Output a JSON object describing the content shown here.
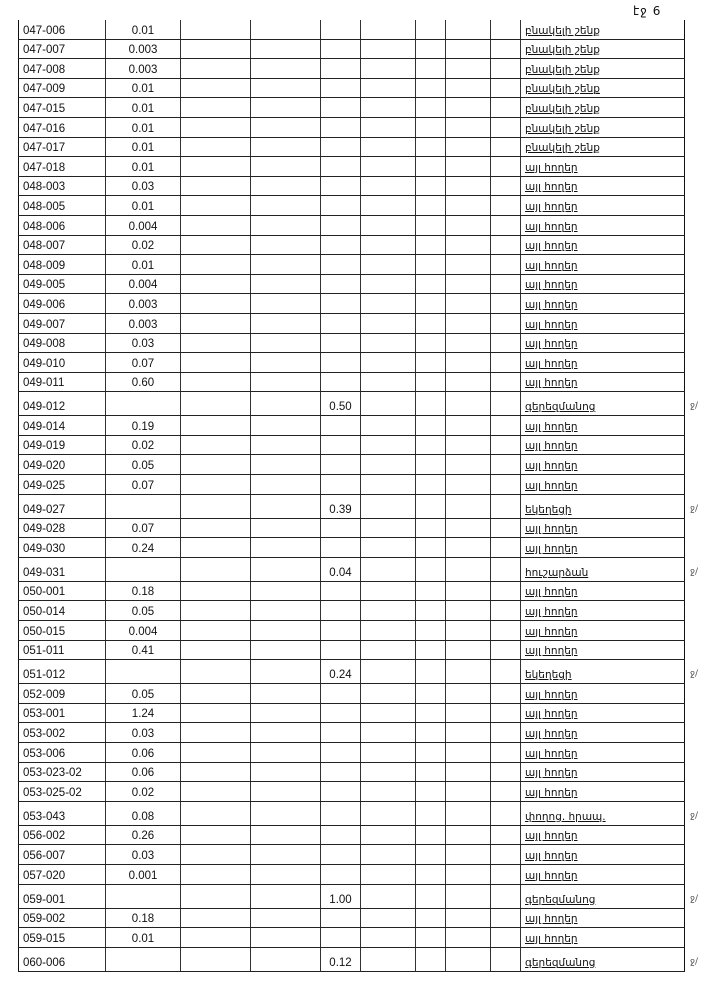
{
  "page_number": "էջ 6",
  "rows": [
    {
      "id": "047-006",
      "area": "0.01",
      "area2": "",
      "use": "բնակելի շենք",
      "mark": ""
    },
    {
      "id": "047-007",
      "area": "0.003",
      "area2": "",
      "use": "բնակելի շենք",
      "mark": ""
    },
    {
      "id": "047-008",
      "area": "0.003",
      "area2": "",
      "use": "բնակելի շենք",
      "mark": ""
    },
    {
      "id": "047-009",
      "area": "0.01",
      "area2": "",
      "use": "բնակելի շենք",
      "mark": ""
    },
    {
      "id": "047-015",
      "area": "0.01",
      "area2": "",
      "use": "բնակելի շենք",
      "mark": ""
    },
    {
      "id": "047-016",
      "area": "0.01",
      "area2": "",
      "use": "բնակելի շենք",
      "mark": ""
    },
    {
      "id": "047-017",
      "area": "0.01",
      "area2": "",
      "use": "բնակելի շենք",
      "mark": ""
    },
    {
      "id": "047-018",
      "area": "0.01",
      "area2": "",
      "use": "այլ հողեր",
      "mark": ""
    },
    {
      "id": "048-003",
      "area": "0.03",
      "area2": "",
      "use": "այլ հողեր",
      "mark": ""
    },
    {
      "id": "048-005",
      "area": "0.01",
      "area2": "",
      "use": "այլ հողեր",
      "mark": ""
    },
    {
      "id": "048-006",
      "area": "0.004",
      "area2": "",
      "use": "այլ հողեր",
      "mark": ""
    },
    {
      "id": "048-007",
      "area": "0.02",
      "area2": "",
      "use": "այլ հողեր",
      "mark": ""
    },
    {
      "id": "048-009",
      "area": "0.01",
      "area2": "",
      "use": "այլ հողեր",
      "mark": ""
    },
    {
      "id": "049-005",
      "area": "0.004",
      "area2": "",
      "use": "այլ հողեր",
      "mark": ""
    },
    {
      "id": "049-006",
      "area": "0.003",
      "area2": "",
      "use": "այլ հողեր",
      "mark": ""
    },
    {
      "id": "049-007",
      "area": "0.003",
      "area2": "",
      "use": "այլ հողեր",
      "mark": ""
    },
    {
      "id": "049-008",
      "area": "0.03",
      "area2": "",
      "use": "այլ հողեր",
      "mark": ""
    },
    {
      "id": "049-010",
      "area": "0.07",
      "area2": "",
      "use": "այլ հողեր",
      "mark": ""
    },
    {
      "id": "049-011",
      "area": "0.60",
      "area2": "",
      "use": "այլ հողեր",
      "mark": ""
    },
    {
      "id": "049-012",
      "area": "",
      "area2": "0.50",
      "use": "գերեզմանոց",
      "mark": "ջ/"
    },
    {
      "id": "049-014",
      "area": "0.19",
      "area2": "",
      "use": "այլ հողեր",
      "mark": ""
    },
    {
      "id": "049-019",
      "area": "0.02",
      "area2": "",
      "use": "այլ հողեր",
      "mark": ""
    },
    {
      "id": "049-020",
      "area": "0.05",
      "area2": "",
      "use": "այլ հողեր",
      "mark": ""
    },
    {
      "id": "049-025",
      "area": "0.07",
      "area2": "",
      "use": "այլ հողեր",
      "mark": ""
    },
    {
      "id": "049-027",
      "area": "",
      "area2": "0.39",
      "use": "եկեղեցի",
      "mark": "ջ/"
    },
    {
      "id": "049-028",
      "area": "0.07",
      "area2": "",
      "use": "այլ հողեր",
      "mark": ""
    },
    {
      "id": "049-030",
      "area": "0.24",
      "area2": "",
      "use": "այլ հողեր",
      "mark": ""
    },
    {
      "id": "049-031",
      "area": "",
      "area2": "0.04",
      "use": "հուշարձան",
      "mark": "ջ/"
    },
    {
      "id": "050-001",
      "area": "0.18",
      "area2": "",
      "use": "այլ հողեր",
      "mark": ""
    },
    {
      "id": "050-014",
      "area": "0.05",
      "area2": "",
      "use": "այլ հողեր",
      "mark": ""
    },
    {
      "id": "050-015",
      "area": "0.004",
      "area2": "",
      "use": "այլ հողեր",
      "mark": ""
    },
    {
      "id": "051-011",
      "area": "0.41",
      "area2": "",
      "use": "այլ հողեր",
      "mark": ""
    },
    {
      "id": "051-012",
      "area": "",
      "area2": "0.24",
      "use": "եկեղեցի",
      "mark": "ջ/"
    },
    {
      "id": "052-009",
      "area": "0.05",
      "area2": "",
      "use": "այլ հողեր",
      "mark": ""
    },
    {
      "id": "053-001",
      "area": "1.24",
      "area2": "",
      "use": "այլ հողեր",
      "mark": ""
    },
    {
      "id": "053-002",
      "area": "0.03",
      "area2": "",
      "use": "այլ հողեր",
      "mark": ""
    },
    {
      "id": "053-006",
      "area": "0.06",
      "area2": "",
      "use": "այլ հողեր",
      "mark": ""
    },
    {
      "id": "053-023-02",
      "area": "0.06",
      "area2": "",
      "use": "այլ հողեր",
      "mark": ""
    },
    {
      "id": "053-025-02",
      "area": "0.02",
      "area2": "",
      "use": "այլ հողեր",
      "mark": ""
    },
    {
      "id": "053-043",
      "area": "0.08",
      "area2": "",
      "use": "փողոց. հրապ.",
      "mark": "ջ/"
    },
    {
      "id": "056-002",
      "area": "0.26",
      "area2": "",
      "use": "այլ հողեր",
      "mark": ""
    },
    {
      "id": "056-007",
      "area": "0.03",
      "area2": "",
      "use": "այլ հողեր",
      "mark": ""
    },
    {
      "id": "057-020",
      "area": "0.001",
      "area2": "",
      "use": "այլ հողեր",
      "mark": ""
    },
    {
      "id": "059-001",
      "area": "",
      "area2": "1.00",
      "use": "գերեզմանոց",
      "mark": "ջ/"
    },
    {
      "id": "059-002",
      "area": "0.18",
      "area2": "",
      "use": "այլ հողեր",
      "mark": ""
    },
    {
      "id": "059-015",
      "area": "0.01",
      "area2": "",
      "use": "այլ հողեր",
      "mark": ""
    },
    {
      "id": "060-006",
      "area": "",
      "area2": "0.12",
      "use": "գերեզմանոց",
      "mark": "ջ/"
    }
  ]
}
